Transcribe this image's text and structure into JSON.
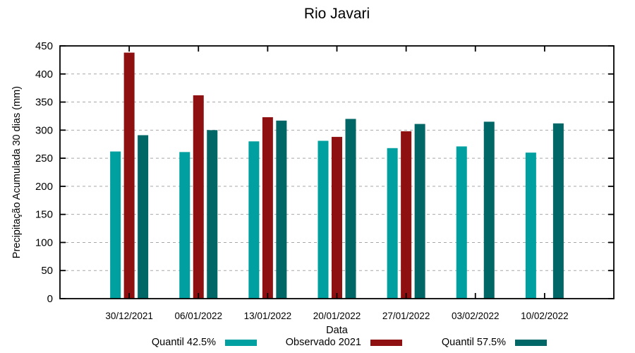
{
  "chart_data": {
    "type": "bar",
    "title": "Rio Javari",
    "xlabel": "Data",
    "ylabel": "Precipitação Acumulada 30 dias (mm)",
    "ylim": [
      0,
      450
    ],
    "ytick_step": 50,
    "yticks": [
      0,
      50,
      100,
      150,
      200,
      250,
      300,
      350,
      400,
      450
    ],
    "grid": "horizontal-dashed",
    "legend_position": "bottom",
    "categories": [
      "30/12/2021",
      "06/01/2022",
      "13/01/2022",
      "20/01/2022",
      "27/01/2022",
      "03/02/2022",
      "10/02/2022"
    ],
    "series": [
      {
        "name": "Quantil 42.5%",
        "color": "#00A0A0",
        "values": [
          262,
          261,
          280,
          281,
          268,
          271,
          260
        ]
      },
      {
        "name": "Observado 2021",
        "color": "#8E1010",
        "values": [
          438,
          362,
          323,
          288,
          298,
          null,
          null
        ]
      },
      {
        "name": "Quantil 57.5%",
        "color": "#006666",
        "values": [
          291,
          300,
          317,
          320,
          311,
          315,
          312
        ]
      }
    ],
    "axis_color": "#000000",
    "gridline_color": "#a8a8a8"
  }
}
